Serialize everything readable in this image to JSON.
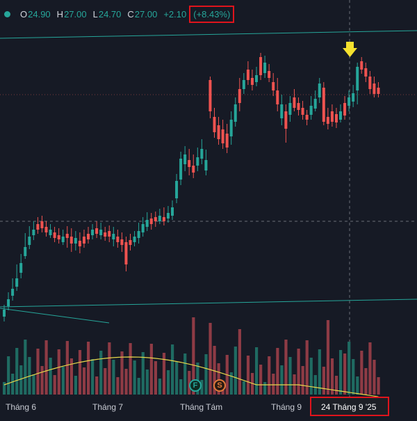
{
  "header": {
    "o_label": "O",
    "o_value": "24.90",
    "h_label": "H",
    "h_value": "27.00",
    "l_label": "L",
    "l_value": "24.70",
    "c_label": "C",
    "c_value": "27.00",
    "change": "+2.10",
    "change_pct": "(+8.43%)"
  },
  "colors": {
    "background": "#161a25",
    "up": "#26a69a",
    "down": "#ef5350",
    "volume_up": "#1f6b62",
    "volume_down": "#8e3b45",
    "ma_line": "#e6d84a",
    "trendline": "#26a69a",
    "highlight_box": "#e0141c",
    "arrow": "#f5e12e"
  },
  "chart_data": {
    "type": "candlestick",
    "x_tick_labels": [
      "Tháng 6",
      "Tháng 7",
      "Tháng Tám",
      "Tháng 9"
    ],
    "crosshair_date": "24 Tháng 9 '25",
    "last_candle": {
      "open": 24.9,
      "high": 27.0,
      "low": 24.7,
      "close": 27.0,
      "change": 2.1,
      "change_pct": 8.43
    },
    "grid": false,
    "volume_pane": true,
    "moving_average_on_volume": true,
    "events": [
      {
        "label": "F",
        "name": "financials-event"
      },
      {
        "label": "S",
        "name": "split-event"
      }
    ]
  }
}
